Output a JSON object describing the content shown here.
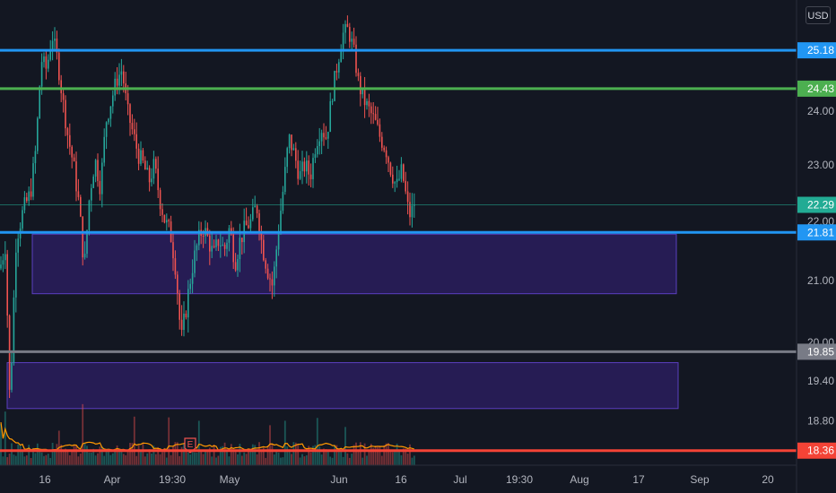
{
  "currency_badge": "USD",
  "earnings_marker": "E",
  "colors": {
    "background": "#131722",
    "up": "#26a69a",
    "down": "#ef5350",
    "blue_line": "#2196f3",
    "green_line": "#4caf50",
    "gray_line": "#787b86",
    "red_line": "#f44336",
    "zone_fill": "#2e1f66",
    "zone_border": "#5b3fbf",
    "volume_ma": "#ff9800",
    "last_price": "#22ab94"
  },
  "chart_data": {
    "type": "candlestick",
    "y_scale": "log",
    "ylim": [
      18.15,
      26.2
    ],
    "y_ticks": [
      "24.00",
      "23.00",
      "22.00",
      "21.00",
      "20.00",
      "19.40",
      "18.80"
    ],
    "x_ticks": [
      "16",
      "Apr",
      "19:30",
      "May",
      "Jun",
      "16",
      "Jul",
      "19:30",
      "Aug",
      "17",
      "Sep",
      "20"
    ],
    "horizontal_levels": [
      {
        "id": "level-top-blue",
        "price": 25.18,
        "label": "25.18",
        "color": "#2196f3"
      },
      {
        "id": "level-green",
        "price": 24.43,
        "label": "24.43",
        "color": "#4caf50"
      },
      {
        "id": "level-blue-support",
        "price": 21.81,
        "label": "21.81",
        "color": "#2196f3"
      },
      {
        "id": "level-gray",
        "price": 19.85,
        "label": "19.85",
        "color": "#787b86"
      },
      {
        "id": "level-red",
        "price": 18.36,
        "label": "18.36",
        "color": "#f44336"
      }
    ],
    "last_price": {
      "price": 22.29,
      "label": "22.29"
    },
    "zones": [
      {
        "id": "demand-zone-upper",
        "from": 20.78,
        "to": 21.78
      },
      {
        "id": "demand-zone-lower",
        "from": 18.98,
        "to": 19.68
      }
    ],
    "price_path": [
      [
        0,
        21.2
      ],
      [
        6,
        21.6
      ],
      [
        11,
        19.0
      ],
      [
        18,
        21.7
      ],
      [
        26,
        22.2
      ],
      [
        34,
        22.5
      ],
      [
        40,
        23.3
      ],
      [
        46,
        25.0
      ],
      [
        52,
        24.8
      ],
      [
        58,
        25.5
      ],
      [
        64,
        25.0
      ],
      [
        70,
        24.2
      ],
      [
        76,
        23.5
      ],
      [
        82,
        23.0
      ],
      [
        88,
        22.3
      ],
      [
        94,
        21.2
      ],
      [
        100,
        22.5
      ],
      [
        106,
        23.1
      ],
      [
        112,
        22.6
      ],
      [
        118,
        23.8
      ],
      [
        124,
        24.2
      ],
      [
        130,
        24.6
      ],
      [
        136,
        24.8
      ],
      [
        142,
        24.0
      ],
      [
        148,
        23.6
      ],
      [
        154,
        23.2
      ],
      [
        160,
        23.0
      ],
      [
        166,
        22.7
      ],
      [
        172,
        23.0
      ],
      [
        178,
        22.4
      ],
      [
        184,
        22.0
      ],
      [
        190,
        21.8
      ],
      [
        196,
        21.2
      ],
      [
        202,
        20.0
      ],
      [
        208,
        20.6
      ],
      [
        214,
        21.2
      ],
      [
        220,
        21.6
      ],
      [
        226,
        21.9
      ],
      [
        232,
        21.7
      ],
      [
        238,
        21.4
      ],
      [
        244,
        21.7
      ],
      [
        250,
        21.5
      ],
      [
        256,
        21.9
      ],
      [
        262,
        21.3
      ],
      [
        268,
        21.7
      ],
      [
        274,
        21.9
      ],
      [
        280,
        22.0
      ],
      [
        286,
        22.3
      ],
      [
        292,
        21.6
      ],
      [
        298,
        21.2
      ],
      [
        304,
        20.9
      ],
      [
        310,
        21.8
      ],
      [
        316,
        22.6
      ],
      [
        322,
        23.5
      ],
      [
        328,
        23.2
      ],
      [
        334,
        22.8
      ],
      [
        340,
        23.0
      ],
      [
        346,
        22.8
      ],
      [
        352,
        23.4
      ],
      [
        358,
        23.7
      ],
      [
        364,
        23.5
      ],
      [
        370,
        24.3
      ],
      [
        376,
        24.9
      ],
      [
        382,
        25.5
      ],
      [
        388,
        25.6
      ],
      [
        394,
        25.2
      ],
      [
        400,
        24.5
      ],
      [
        406,
        24.2
      ],
      [
        412,
        24.0
      ],
      [
        418,
        23.8
      ],
      [
        424,
        23.5
      ],
      [
        430,
        23.3
      ],
      [
        436,
        22.9
      ],
      [
        442,
        22.6
      ],
      [
        448,
        22.9
      ],
      [
        452,
        22.5
      ],
      [
        456,
        22.1
      ],
      [
        460,
        22.2
      ],
      [
        462,
        22.29
      ]
    ]
  }
}
